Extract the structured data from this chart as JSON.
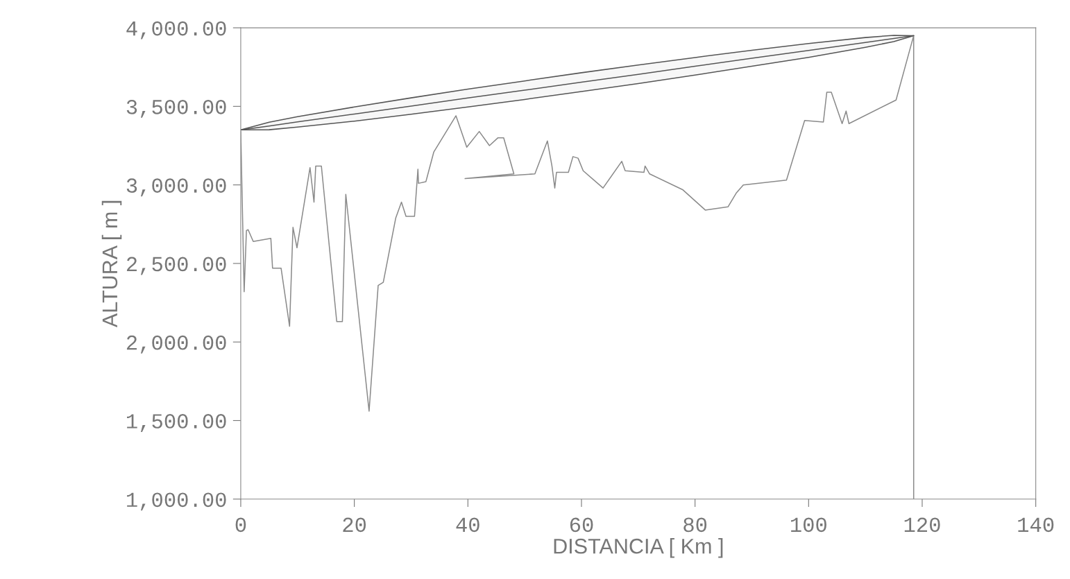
{
  "chart_data": {
    "type": "line",
    "xlabel": "DISTANCIA [ Km ]",
    "ylabel": "ALTURA [ m ]",
    "xlim": [
      0,
      140
    ],
    "xticks": [
      0,
      20,
      40,
      60,
      80,
      100,
      120,
      140
    ],
    "ylim": [
      1000,
      4000
    ],
    "yticks": [
      {
        "value": 1000,
        "label": "1,000.00"
      },
      {
        "value": 1500,
        "label": "1,500.00"
      },
      {
        "value": 2000,
        "label": "2,000.00"
      },
      {
        "value": 2500,
        "label": "2,500.00"
      },
      {
        "value": 3000,
        "label": "3,000.00"
      },
      {
        "value": 3500,
        "label": "3,500.00"
      },
      {
        "value": 4000,
        "label": "4,000.00"
      }
    ],
    "grid": false,
    "marker": "none",
    "line_style": "solid",
    "series": [
      {
        "color": "#8a8a8a",
        "x": [
          0,
          0.6,
          1.0,
          1.3,
          2.2,
          5.3,
          5.6,
          7.1,
          8.6,
          9.2,
          9.9,
          12.2,
          12.9,
          13.2,
          14.2,
          16.9,
          17.9,
          18.5,
          22.6,
          24.2,
          25.1,
          27.3,
          28.3,
          29.1,
          30.6,
          31.2,
          31.3,
          32.6,
          34.0,
          37.9,
          39.8,
          42.0,
          43.8,
          45.3,
          46.3,
          48.1,
          39.5,
          51.8,
          54.0,
          54.8,
          55.3,
          55.6,
          57.7,
          58.5,
          59.4,
          60.3,
          63.8,
          67.1,
          67.7,
          71.0,
          71.2,
          72.0,
          77.8,
          81.8,
          85.8,
          87.3,
          88.5,
          96.1,
          99.3,
          102.6,
          103.2,
          104.0,
          105.9,
          106.6,
          107.1,
          115.4,
          118.5,
          118.5
        ],
        "values": [
          3340,
          2320,
          2710,
          2715,
          2640,
          2660,
          2470,
          2470,
          2100,
          2730,
          2600,
          3110,
          2890,
          3120,
          3120,
          2130,
          2130,
          2940,
          1560,
          2360,
          2380,
          2790,
          2890,
          2800,
          2800,
          3100,
          3010,
          3020,
          3210,
          3440,
          3240,
          3340,
          3250,
          3300,
          3300,
          3070,
          3040,
          3070,
          3280,
          3120,
          2980,
          3080,
          3080,
          3180,
          3170,
          3090,
          2980,
          3150,
          3090,
          3080,
          3120,
          3070,
          2970,
          2840,
          2860,
          2950,
          3000,
          3030,
          3410,
          3400,
          3590,
          3590,
          3390,
          3470,
          3390,
          3540,
          3950,
          1000
        ]
      },
      {
        "color": "#555555",
        "x": [
          0,
          5,
          10,
          20,
          30,
          40,
          50,
          60,
          70,
          80,
          90,
          100,
          110,
          115,
          118.5
        ],
        "values": [
          3350,
          3375,
          3401,
          3451,
          3502,
          3553,
          3603,
          3654,
          3704,
          3755,
          3806,
          3856,
          3907,
          3932,
          3950
        ],
        "upper": [
          3350,
          3399,
          3434,
          3496,
          3554,
          3610,
          3662,
          3714,
          3763,
          3811,
          3857,
          3900,
          3938,
          3952,
          3950
        ],
        "lower": [
          3350,
          3351,
          3368,
          3406,
          3450,
          3496,
          3544,
          3594,
          3645,
          3699,
          3755,
          3812,
          3876,
          3912,
          3950
        ]
      }
    ]
  }
}
